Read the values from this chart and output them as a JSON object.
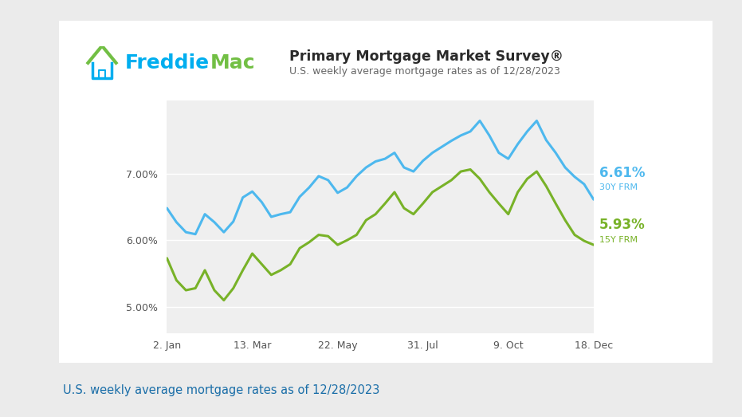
{
  "title": "Primary Mortgage Market Survey®",
  "subtitle": "U.S. weekly average mortgage rates as of 12/28/2023",
  "footer": "U.S. weekly average mortgage rates as of 12/28/2023",
  "x_labels": [
    "2. Jan",
    "13. Mar",
    "22. May",
    "31. Jul",
    "9. Oct",
    "18. Dec"
  ],
  "y_ticks": [
    5.0,
    6.0,
    7.0
  ],
  "y_labels": [
    "5.00%",
    "6.00%",
    "7.00%"
  ],
  "ylim_low": 4.6,
  "ylim_high": 8.1,
  "label_30y": "6.61%",
  "label_30y_sub": "30Y FRM",
  "label_15y": "5.93%",
  "label_15y_sub": "15Y FRM",
  "color_30y": "#4DB8EE",
  "color_15y": "#78B228",
  "bg_outer": "#EBEBEB",
  "bg_card": "#FFFFFF",
  "bg_plot": "#EFEFEF",
  "freddie_blue": "#00AEEF",
  "freddie_green": "#72BF44",
  "footer_color": "#1A6EA8",
  "line_30y": [
    6.48,
    6.27,
    6.12,
    6.09,
    6.39,
    6.27,
    6.12,
    6.28,
    6.64,
    6.73,
    6.57,
    6.35,
    6.39,
    6.42,
    6.65,
    6.79,
    6.96,
    6.9,
    6.71,
    6.79,
    6.96,
    7.09,
    7.18,
    7.22,
    7.31,
    7.09,
    7.03,
    7.19,
    7.31,
    7.4,
    7.49,
    7.57,
    7.63,
    7.79,
    7.57,
    7.31,
    7.22,
    7.44,
    7.63,
    7.79,
    7.5,
    7.31,
    7.09,
    6.95,
    6.84,
    6.61
  ],
  "line_15y": [
    5.73,
    5.4,
    5.25,
    5.28,
    5.55,
    5.25,
    5.1,
    5.28,
    5.55,
    5.8,
    5.64,
    5.48,
    5.55,
    5.64,
    5.88,
    5.97,
    6.08,
    6.06,
    5.93,
    6.0,
    6.08,
    6.3,
    6.39,
    6.55,
    6.72,
    6.48,
    6.39,
    6.55,
    6.72,
    6.81,
    6.9,
    7.03,
    7.06,
    6.92,
    6.72,
    6.55,
    6.39,
    6.72,
    6.92,
    7.03,
    6.81,
    6.55,
    6.3,
    6.08,
    5.99,
    5.93
  ]
}
